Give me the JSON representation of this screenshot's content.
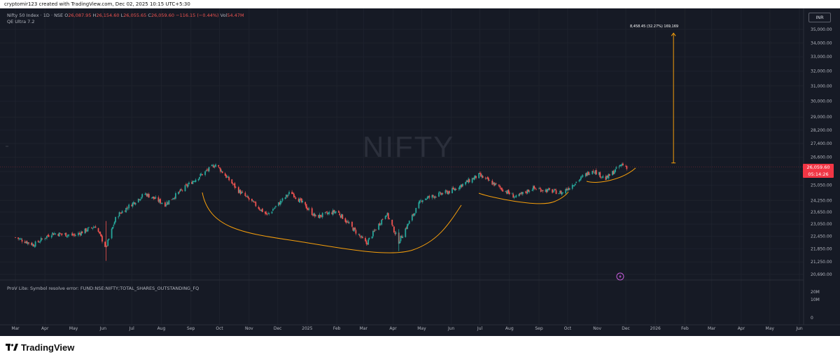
{
  "header": {
    "caption": "cryptomir123 created with TradingView.com, Dec 02, 2025 10:15 UTC+5:30"
  },
  "legend": {
    "symbol": "Nifty 50 Index · 1D · NSE",
    "o_label": "O",
    "o_value": "26,087.95",
    "h_label": "H",
    "h_value": "26,154.60",
    "l_label": "L",
    "l_value": "26,055.65",
    "c_label": "C",
    "c_value": "26,059.60",
    "change": "−116.15 (−0.44%)",
    "vol_label": "Vol",
    "vol_value": "54.47M",
    "indicator": "QE Ultra 7.2"
  },
  "currency": "INR",
  "watermark": "NIFTY",
  "current_price": "26,059.60",
  "countdown": "05:14:26",
  "measure_label": "8,458.45 (32.27%) 169,169",
  "indicator_error": "ProV Lite: Symbol resolve error: FUND:NSE:NIFTY;TOTAL_SHARES_OUTSTANDING_FQ",
  "volume_axis": [
    "20M",
    "10M",
    "0"
  ],
  "brand": "TradingView",
  "colors": {
    "background": "#161a25",
    "up": "#26a69a",
    "down": "#ef5350",
    "curve": "#f59e0b",
    "price_tag": "#f23645"
  },
  "chart_data": {
    "type": "candlestick",
    "symbol": "Nifty 50 Index",
    "interval": "1D",
    "exchange": "NSE",
    "yaxis_scale": "log",
    "ylim": [
      20500,
      35800
    ],
    "price_ticks": [
      "35,000.00",
      "34,000.00",
      "33,000.00",
      "32,000.00",
      "31,000.00",
      "30,000.00",
      "29,000.00",
      "28,200.00",
      "27,400.00",
      "26,600.00",
      "25,800.00",
      "25,050.00",
      "24,250.00",
      "23,650.00",
      "23,050.00",
      "22,450.00",
      "21,850.00",
      "21,250.00",
      "20,690.00"
    ],
    "time_ticks": [
      "Mar",
      "Apr",
      "May",
      "Jun",
      "Jul",
      "Aug",
      "Sep",
      "Oct",
      "Nov",
      "Dec",
      "2025",
      "Feb",
      "Mar",
      "Apr",
      "May",
      "Jun",
      "Jul",
      "Aug",
      "Sep",
      "Oct",
      "Nov",
      "Dec",
      "2026",
      "Feb",
      "Mar",
      "Apr",
      "May",
      "Jun"
    ],
    "price_path": [
      {
        "date": "2024-03-01",
        "close": 22400
      },
      {
        "date": "2024-03-20",
        "close": 22050
      },
      {
        "date": "2024-04-08",
        "close": 22600
      },
      {
        "date": "2024-05-02",
        "close": 22500
      },
      {
        "date": "2024-05-24",
        "close": 22950
      },
      {
        "date": "2024-06-04",
        "close": 21900
      },
      {
        "date": "2024-06-15",
        "close": 23450
      },
      {
        "date": "2024-07-15",
        "close": 24600
      },
      {
        "date": "2024-08-05",
        "close": 24050
      },
      {
        "date": "2024-09-01",
        "close": 25200
      },
      {
        "date": "2024-09-27",
        "close": 26200
      },
      {
        "date": "2024-10-20",
        "close": 24800
      },
      {
        "date": "2024-11-20",
        "close": 23500
      },
      {
        "date": "2024-12-15",
        "close": 24700
      },
      {
        "date": "2025-01-10",
        "close": 23400
      },
      {
        "date": "2025-02-01",
        "close": 23700
      },
      {
        "date": "2025-03-04",
        "close": 22100
      },
      {
        "date": "2025-03-25",
        "close": 23600
      },
      {
        "date": "2025-04-07",
        "close": 22200
      },
      {
        "date": "2025-05-01",
        "close": 24300
      },
      {
        "date": "2025-06-01",
        "close": 24750
      },
      {
        "date": "2025-06-30",
        "close": 25600
      },
      {
        "date": "2025-08-08",
        "close": 24400
      },
      {
        "date": "2025-08-25",
        "close": 24900
      },
      {
        "date": "2025-09-25",
        "close": 24650
      },
      {
        "date": "2025-10-27",
        "close": 25900
      },
      {
        "date": "2025-11-10",
        "close": 25400
      },
      {
        "date": "2025-11-27",
        "close": 26200
      },
      {
        "date": "2025-12-02",
        "close": 26059.6
      }
    ],
    "current": {
      "open": 26087.95,
      "high": 26154.6,
      "low": 26055.65,
      "close": 26059.6,
      "change": -116.15,
      "change_pct": -0.44,
      "volume": "54.47M"
    },
    "measure": {
      "from_date": "2026-01-20",
      "from": 26280,
      "to": 34720,
      "change": 8458.45,
      "change_pct": 32.27,
      "bars": 169,
      "volume": 169
    }
  }
}
